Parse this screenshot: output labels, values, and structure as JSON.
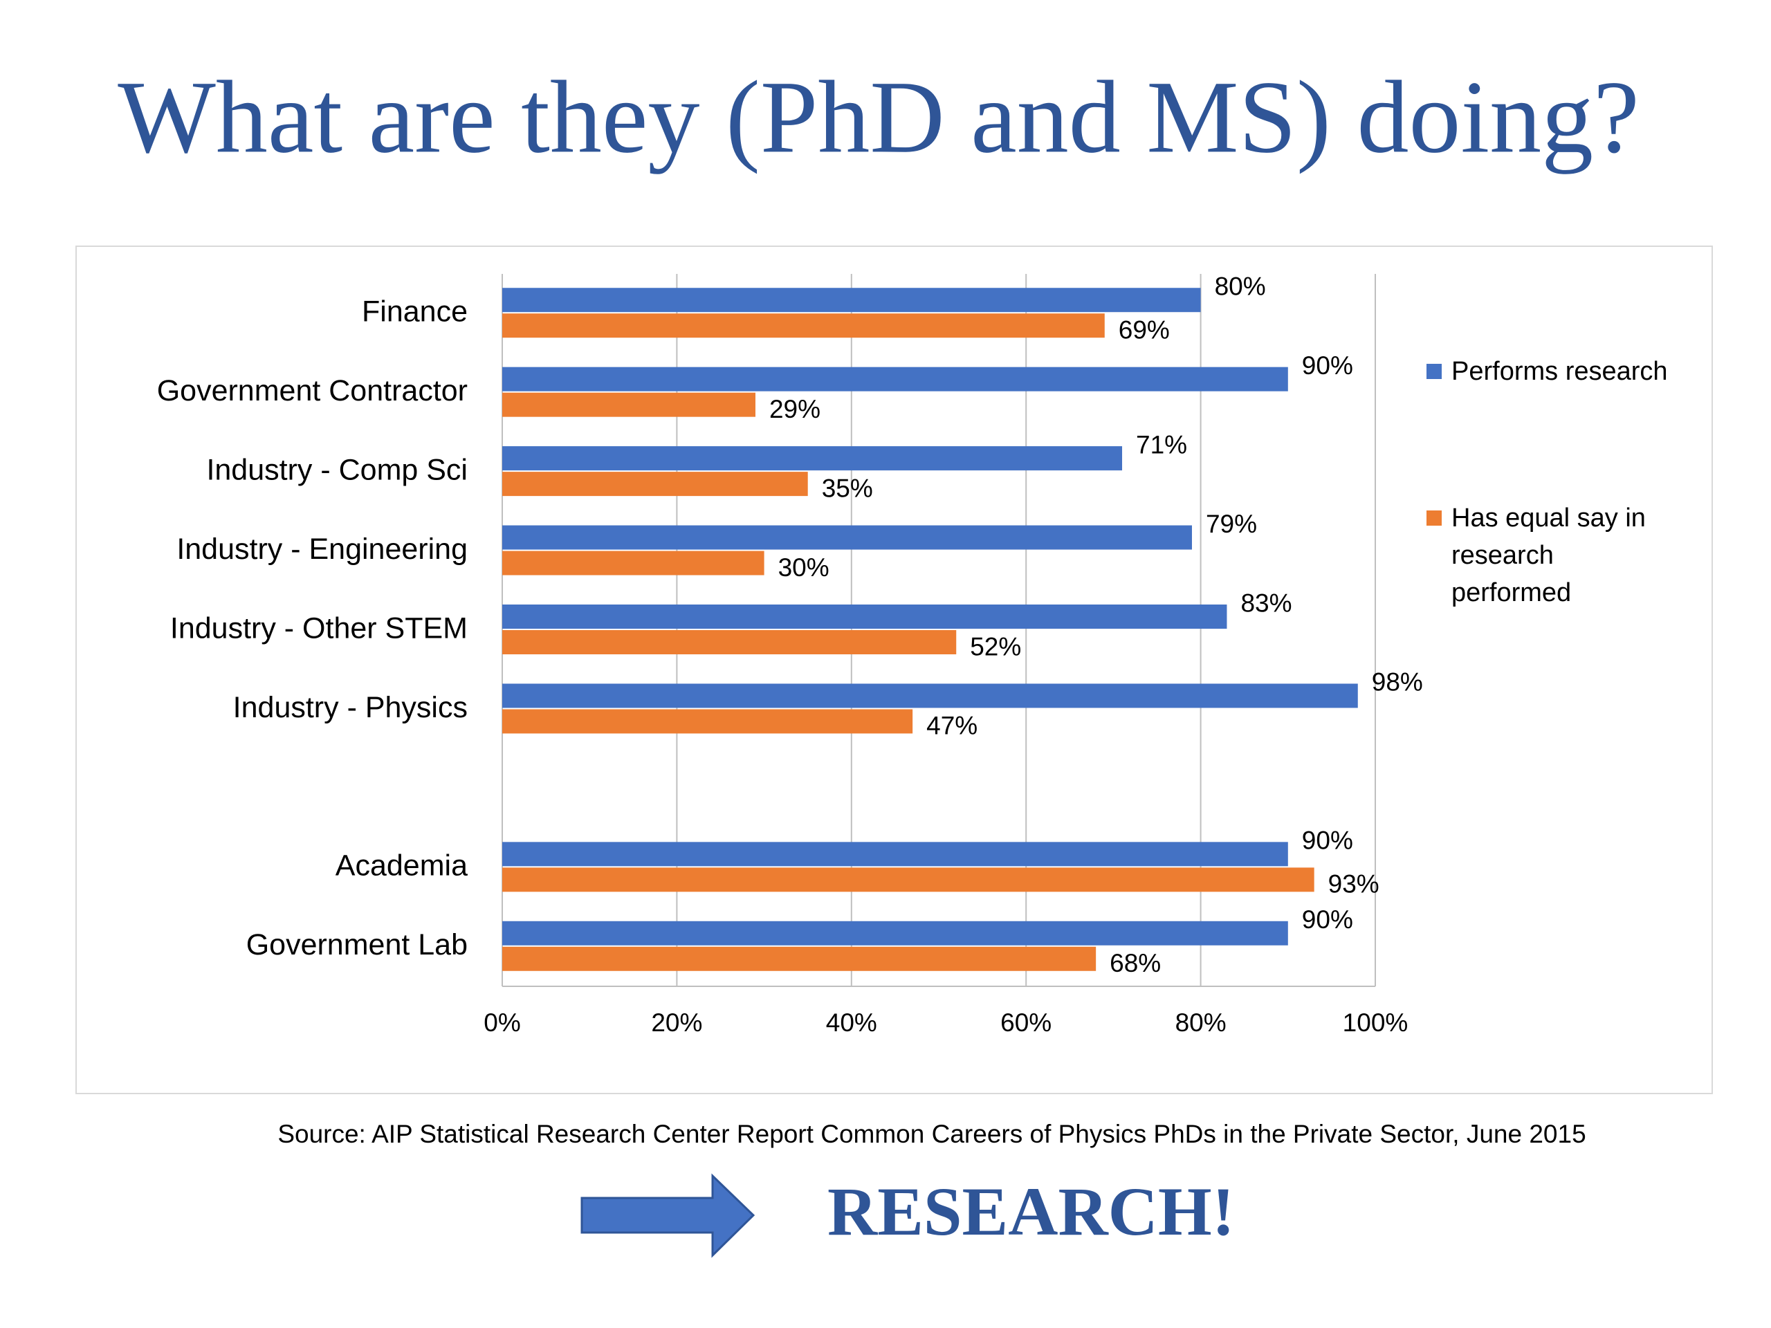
{
  "chart_data": {
    "type": "hbar",
    "title": "What are they (PhD and MS) doing?",
    "categories": [
      "Finance",
      "Government Contractor",
      "Industry - Comp Sci",
      "Industry - Engineering",
      "Industry - Other STEM",
      "Industry - Physics",
      null,
      "Academia",
      "Government Lab"
    ],
    "series": [
      {
        "name": "Performs research",
        "color": "#4472c4",
        "values": [
          80,
          90,
          71,
          79,
          83,
          98,
          null,
          90,
          90
        ],
        "value_labels": [
          "80%",
          "90%",
          "71%",
          "79%",
          "83%",
          "98%",
          null,
          "90%",
          "90%"
        ]
      },
      {
        "name": "Has equal say in research performed",
        "color": "#ed7d31",
        "values": [
          69,
          29,
          35,
          30,
          52,
          47,
          null,
          93,
          68
        ],
        "value_labels": [
          "69%",
          "29%",
          "35%",
          "30%",
          "52%",
          "47%",
          null,
          "93%",
          "68%"
        ]
      }
    ],
    "xlim": [
      0,
      100
    ],
    "xticks": [
      {
        "value": 0,
        "label": "0%"
      },
      {
        "value": 20,
        "label": "20%"
      },
      {
        "value": 40,
        "label": "40%"
      },
      {
        "value": 60,
        "label": "60%"
      },
      {
        "value": 80,
        "label": "80%"
      },
      {
        "value": 100,
        "label": "100%"
      }
    ],
    "grid": true,
    "legend": "right",
    "source": "Source: AIP Statistical Research Center Report Common Careers of Physics PhDs in the Private Sector, June 2015",
    "callout": "RESEARCH!"
  }
}
